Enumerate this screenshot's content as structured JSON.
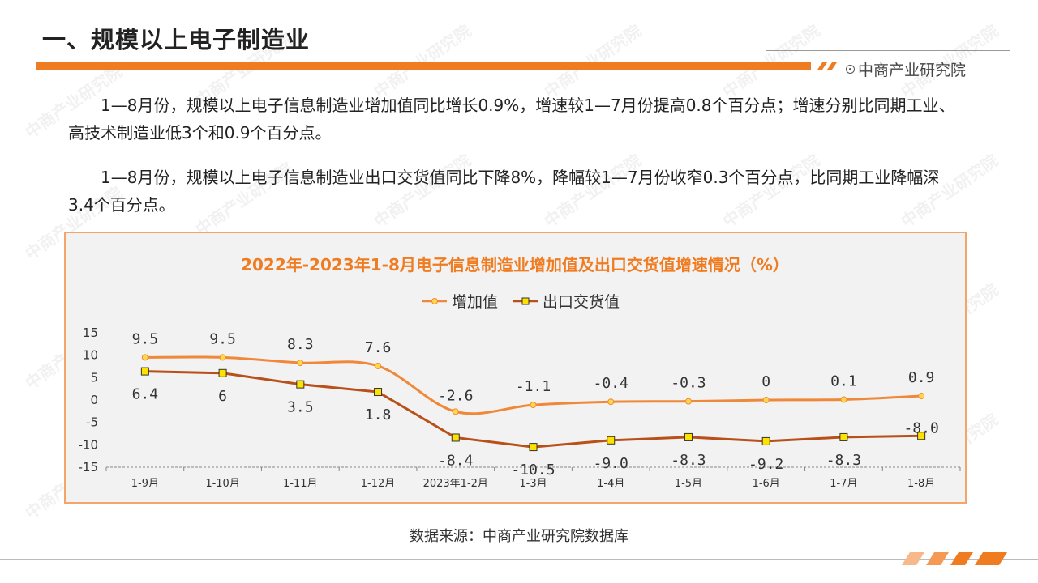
{
  "header": {
    "title": "一、规模以上电子制造业",
    "brand": "中商产业研究院"
  },
  "paragraphs": [
    "1—8月份，规模以上电子信息制造业增加值同比增长0.9%，增速较1—7月份提高0.8个百分点；增速分别比同期工业、高技术制造业低3个和0.9个百分点。",
    "1—8月份，规模以上电子信息制造业出口交货值同比下降8%，降幅较1—7月份收窄0.3个百分点，比同期工业降幅深3.4个百分点。"
  ],
  "watermark": "中商产业研究院",
  "source": "数据来源：中商产业研究院数据库",
  "colors": {
    "accent": "#f07c22",
    "series1": "#f0883a",
    "series2": "#b8501a",
    "marker2": "#ffe100"
  },
  "chart_data": {
    "type": "line",
    "title": "2022年-2023年1-8月电子信息制造业增加值及出口交货值增速情况（%）",
    "categories": [
      "1-9月",
      "1-10月",
      "1-11月",
      "1-12月",
      "2023年1-2月",
      "1-3月",
      "1-4月",
      "1-5月",
      "1-6月",
      "1-7月",
      "1-8月"
    ],
    "series": [
      {
        "name": "增加值",
        "values": [
          9.5,
          9.5,
          8.3,
          7.6,
          -2.6,
          -1.1,
          -0.4,
          -0.3,
          0,
          0.1,
          0.9
        ],
        "labels": [
          "9.5",
          "9.5",
          "8.3",
          "7.6",
          "-2.6",
          "-1.1",
          "-0.4",
          "-0.3",
          "0",
          "0.1",
          "0.9"
        ]
      },
      {
        "name": "出口交货值",
        "values": [
          6.4,
          6,
          3.5,
          1.8,
          -8.4,
          -10.5,
          -9.0,
          -8.3,
          -9.2,
          -8.3,
          -8.0
        ],
        "labels": [
          "6.4",
          "6",
          "3.5",
          "1.8",
          "-8.4",
          "-10.5",
          "-9.0",
          "-8.3",
          "-9.2",
          "-8.3",
          "-8.0"
        ]
      }
    ],
    "yticks": [
      "15",
      "10",
      "5",
      "0",
      "-5",
      "-10",
      "-15"
    ],
    "ylim": [
      -15,
      15
    ],
    "legend": "top-center",
    "grid": false
  }
}
